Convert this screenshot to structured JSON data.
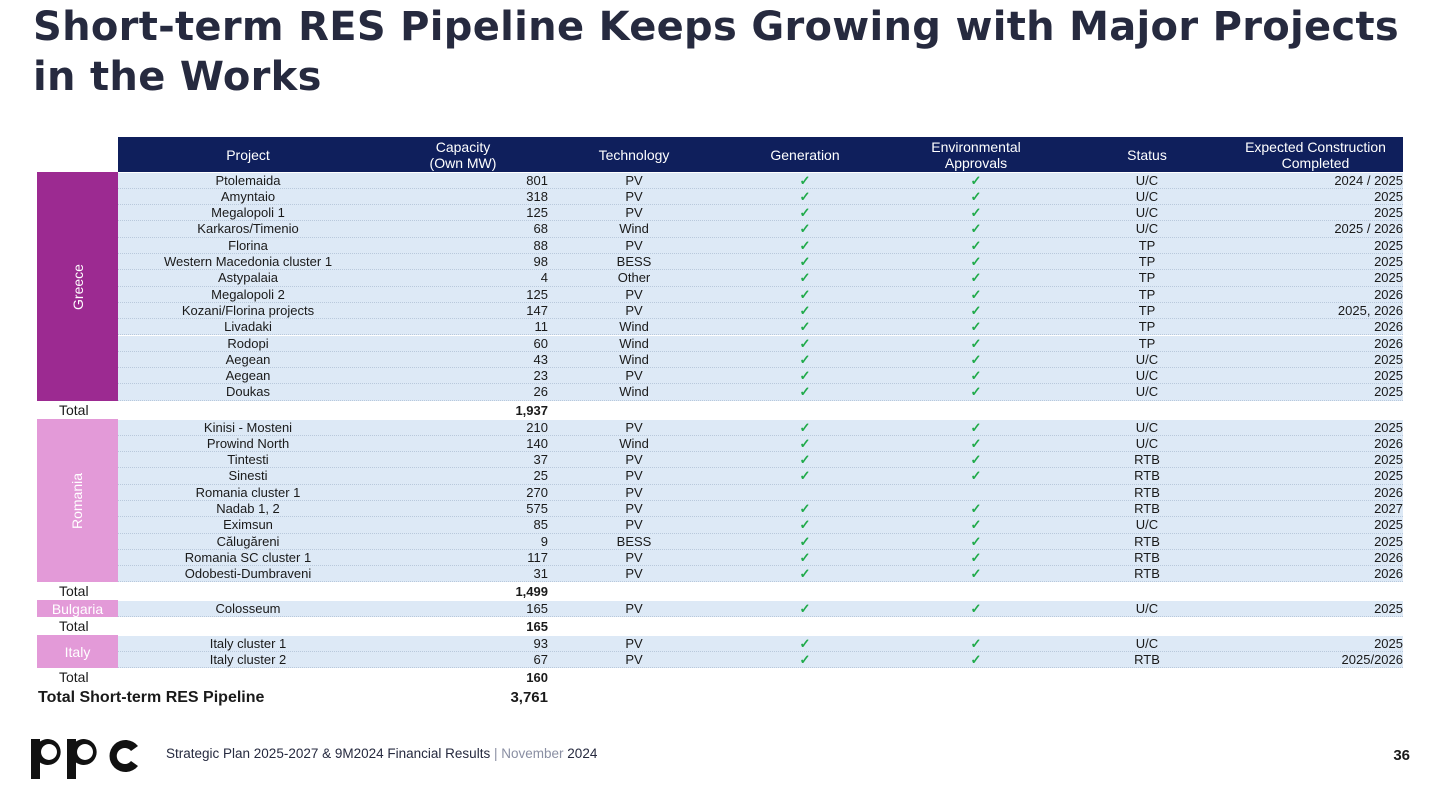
{
  "title": "Short-term RES Pipeline Keeps Growing with Major Projects in the Works",
  "header": {
    "project": "Project",
    "capacity": "Capacity\n(Own MW)",
    "technology": "Technology",
    "generation": "Generation",
    "env_approvals": "Environmental\nApprovals",
    "status": "Status",
    "expected": "Expected Construction\nCompleted"
  },
  "check_glyph": "✓",
  "colors": {
    "header_bg": "#0f1f5c",
    "greece": "#9c2a91",
    "romania": "#e39ad8",
    "bulgaria": "#e39ad8",
    "italy": "#e39ad8",
    "row_bg": "#dde9f6",
    "check": "#1faa4a"
  },
  "groups": {
    "greece": {
      "label": "Greece",
      "total_label": "Total",
      "total": "1,937",
      "rows": [
        {
          "project": "Ptolemaida",
          "capacity": "801",
          "tech": "PV",
          "gen": "✓",
          "env": "✓",
          "status": "U/C",
          "expected": "2024 / 2025"
        },
        {
          "project": "Amyntaio",
          "capacity": "318",
          "tech": "PV",
          "gen": "✓",
          "env": "✓",
          "status": "U/C",
          "expected": "2025"
        },
        {
          "project": "Megalopoli 1",
          "capacity": "125",
          "tech": "PV",
          "gen": "✓",
          "env": "✓",
          "status": "U/C",
          "expected": "2025"
        },
        {
          "project": "Karkaros/Timenio",
          "capacity": "68",
          "tech": "Wind",
          "gen": "✓",
          "env": "✓",
          "status": "U/C",
          "expected": "2025 / 2026"
        },
        {
          "project": "Florina",
          "capacity": "88",
          "tech": "PV",
          "gen": "✓",
          "env": "✓",
          "status": "TP",
          "expected": "2025"
        },
        {
          "project": "Western Macedonia cluster 1",
          "capacity": "98",
          "tech": "BESS",
          "gen": "✓",
          "env": "✓",
          "status": "TP",
          "expected": "2025"
        },
        {
          "project": "Astypalaia",
          "capacity": "4",
          "tech": "Other",
          "gen": "✓",
          "env": "✓",
          "status": "TP",
          "expected": "2025"
        },
        {
          "project": "Megalopoli 2",
          "capacity": "125",
          "tech": "PV",
          "gen": "✓",
          "env": "✓",
          "status": "TP",
          "expected": "2026"
        },
        {
          "project": "Kozani/Florina projects",
          "capacity": "147",
          "tech": "PV",
          "gen": "✓",
          "env": "✓",
          "status": "TP",
          "expected": "2025, 2026"
        },
        {
          "project": "Livadaki",
          "capacity": "11",
          "tech": "Wind",
          "gen": "✓",
          "env": "✓",
          "status": "TP",
          "expected": "2026"
        },
        {
          "project": "Rodopi",
          "capacity": "60",
          "tech": "Wind",
          "gen": "✓",
          "env": "✓",
          "status": "TP",
          "expected": "2026"
        },
        {
          "project": "Aegean",
          "capacity": "43",
          "tech": "Wind",
          "gen": "✓",
          "env": "✓",
          "status": "U/C",
          "expected": "2025"
        },
        {
          "project": "Aegean",
          "capacity": "23",
          "tech": "PV",
          "gen": "✓",
          "env": "✓",
          "status": "U/C",
          "expected": "2025"
        },
        {
          "project": "Doukas",
          "capacity": "26",
          "tech": "Wind",
          "gen": "✓",
          "env": "✓",
          "status": "U/C",
          "expected": "2025"
        }
      ]
    },
    "romania": {
      "label": "Romania",
      "total_label": "Total",
      "total": "1,499",
      "rows": [
        {
          "project": "Kinisi - Mosteni",
          "capacity": "210",
          "tech": "PV",
          "gen": "✓",
          "env": "✓",
          "status": "U/C",
          "expected": "2025"
        },
        {
          "project": "Prowind North",
          "capacity": "140",
          "tech": "Wind",
          "gen": "✓",
          "env": "✓",
          "status": "U/C",
          "expected": "2026"
        },
        {
          "project": "Tintesti",
          "capacity": "37",
          "tech": "PV",
          "gen": "✓",
          "env": "✓",
          "status": "RTB",
          "expected": "2025"
        },
        {
          "project": "Sinesti",
          "capacity": "25",
          "tech": "PV",
          "gen": "✓",
          "env": "✓",
          "status": "RTB",
          "expected": "2025"
        },
        {
          "project": "Romania cluster 1",
          "capacity": "270",
          "tech": "PV",
          "gen": "",
          "env": "",
          "status": "RTB",
          "expected": "2026"
        },
        {
          "project": "Nadab 1, 2",
          "capacity": "575",
          "tech": "PV",
          "gen": "✓",
          "env": "✓",
          "status": "RTB",
          "expected": "2027"
        },
        {
          "project": "Eximsun",
          "capacity": "85",
          "tech": "PV",
          "gen": "✓",
          "env": "✓",
          "status": "U/C",
          "expected": "2025"
        },
        {
          "project": "Călugăreni",
          "capacity": "9",
          "tech": "BESS",
          "gen": "✓",
          "env": "✓",
          "status": "RTB",
          "expected": "2025"
        },
        {
          "project": "Romania SC cluster 1",
          "capacity": "117",
          "tech": "PV",
          "gen": "✓",
          "env": "✓",
          "status": "RTB",
          "expected": "2026"
        },
        {
          "project": "Odobesti-Dumbraveni",
          "capacity": "31",
          "tech": "PV",
          "gen": "✓",
          "env": "✓",
          "status": "RTB",
          "expected": "2026"
        }
      ]
    },
    "bulgaria": {
      "label": "Bulgaria",
      "total_label": "Total",
      "total": "165",
      "rows": [
        {
          "project": "Colosseum",
          "capacity": "165",
          "tech": "PV",
          "gen": "✓",
          "env": "✓",
          "status": "U/C",
          "expected": "2025"
        }
      ]
    },
    "italy": {
      "label": "Italy",
      "total_label": "Total",
      "total": "160",
      "rows": [
        {
          "project": "Italy cluster 1",
          "capacity": "93",
          "tech": "PV",
          "gen": "✓",
          "env": "✓",
          "status": "U/C",
          "expected": "2025"
        },
        {
          "project": "Italy cluster 2",
          "capacity": "67",
          "tech": "PV",
          "gen": "✓",
          "env": "✓",
          "status": "RTB",
          "expected": "2025/2026"
        }
      ]
    }
  },
  "grand_total": {
    "label": "Total Short-term RES Pipeline",
    "value": "3,761"
  },
  "footer": {
    "text": "Strategic Plan 2025-2027 & 9M2024 Financial Results",
    "separator": "|",
    "month": "November",
    "year": "2024"
  },
  "logo_text": "ppc",
  "page_number": "36"
}
